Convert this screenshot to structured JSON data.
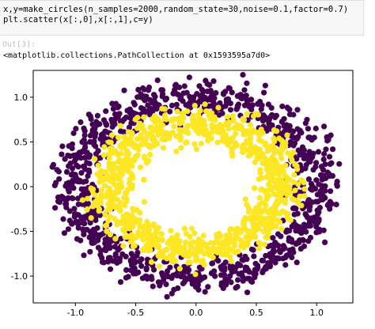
{
  "code": {
    "line1": "x,y=make_circles(n_samples=2000,random_state=30,noise=0.1,factor=0.7)",
    "line2": "plt.scatter(x[:,0],x[:,1],c=y)"
  },
  "output": {
    "prompt": "Out[3]:",
    "text": "<matplotlib.collections.PathCollection at 0x1593595a7d0>"
  },
  "chart_data": {
    "type": "scatter",
    "xlim": [
      -1.35,
      1.3
    ],
    "ylim": [
      -1.3,
      1.3
    ],
    "xticks": [
      "-1.0",
      "-0.5",
      "0.0",
      "0.5",
      "1.0"
    ],
    "xtick_values": [
      -1.0,
      -0.5,
      0.0,
      0.5,
      1.0
    ],
    "yticks": [
      "1.0",
      "0.5",
      "0.0",
      "-0.5",
      "-1.0"
    ],
    "ytick_values": [
      1.0,
      0.5,
      0.0,
      -0.5,
      -1.0
    ],
    "grid": false,
    "series": [
      {
        "radius": 1.0,
        "noise": 0.1,
        "count": 1000,
        "color": "#440154"
      },
      {
        "radius": 0.7,
        "noise": 0.1,
        "count": 1000,
        "color": "#fde725"
      }
    ]
  }
}
